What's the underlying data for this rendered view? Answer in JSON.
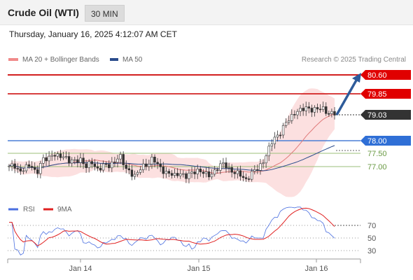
{
  "header": {
    "title": "Crude Oil (WTI)",
    "timeframe": "30 MIN"
  },
  "datetime": "Thursday, January 16, 2025 4:12:07 AM CET",
  "legend": {
    "bollinger": {
      "label": "MA 20 + Bollinger Bands",
      "color": "#f08a8a"
    },
    "ma50": {
      "label": "MA 50",
      "color": "#2b4c8c"
    }
  },
  "copyright": "Research © 2025 Trading Central",
  "chart_data": [
    {
      "type": "candlestick",
      "levels": [
        {
          "value": "80.60",
          "kind": "resistance",
          "color": "#cc0000"
        },
        {
          "value": "79.85",
          "kind": "resistance",
          "color": "#cc0000"
        },
        {
          "value": "79.03",
          "kind": "last",
          "color": "#333333"
        },
        {
          "value": "78.00",
          "kind": "pivot",
          "color": "#4a7fd6"
        },
        {
          "value": "77.50",
          "kind": "support",
          "color": "#9bbf7a"
        },
        {
          "value": "77.00",
          "kind": "support",
          "color": "#9bbf7a"
        }
      ],
      "x_ticks": [
        "Jan 14",
        "Jan 15",
        "Jan 16"
      ],
      "close_series": [
        76.95,
        77.05,
        76.8,
        76.9,
        77.1,
        76.7,
        77.2,
        77.35,
        77.5,
        77.3,
        77.45,
        77.2,
        77.15,
        77.3,
        77.0,
        77.1,
        76.9,
        77.05,
        76.95,
        77.2,
        77.45,
        76.9,
        76.8,
        76.6,
        76.95,
        77.1,
        77.3,
        77.0,
        76.85,
        76.7,
        76.6,
        76.8,
        76.55,
        76.7,
        76.9,
        76.75,
        76.6,
        76.8,
        76.95,
        77.1,
        76.9,
        76.7,
        76.65,
        76.5,
        76.7,
        76.9,
        77.2,
        77.6,
        78.1,
        78.3,
        78.6,
        78.9,
        79.2,
        79.15,
        79.3,
        79.25,
        79.2,
        79.25,
        79.1,
        79.03
      ],
      "projection": {
        "from": 79.03,
        "to": 80.6
      }
    },
    {
      "type": "line",
      "series": [
        {
          "name": "RSI",
          "color": "#4a6fe0"
        },
        {
          "name": "9MA",
          "color": "#e02020"
        }
      ],
      "y_ticks": [
        "70",
        "50",
        "30"
      ],
      "ylim": [
        20,
        80
      ]
    }
  ]
}
